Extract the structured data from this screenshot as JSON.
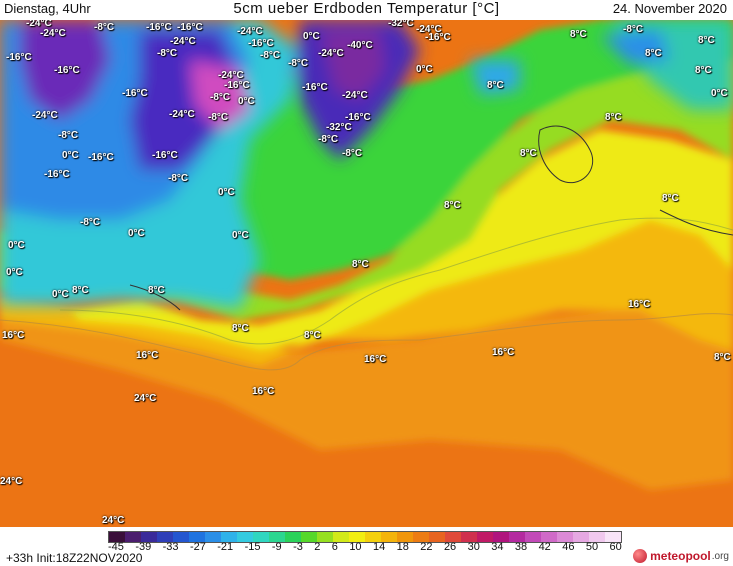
{
  "header": {
    "left": "Dienstag, 4Uhr",
    "title": "5cm ueber Erdboden Temperatur [°C]",
    "date": "24. November 2020"
  },
  "map": {
    "labels": [
      {
        "text": "-24°C"
      },
      {
        "text": "-24°C"
      },
      {
        "text": "-8°C"
      },
      {
        "text": "-16°C"
      },
      {
        "text": "-16°C"
      },
      {
        "text": "-24°C"
      },
      {
        "text": "-24°C"
      },
      {
        "text": "-16°C"
      },
      {
        "text": "-8°C"
      },
      {
        "text": "0°C"
      },
      {
        "text": "-24°C"
      },
      {
        "text": "-40°C"
      },
      {
        "text": "-32°C"
      },
      {
        "text": "-24°C"
      },
      {
        "text": "-16°C"
      },
      {
        "text": "8°C"
      },
      {
        "text": "-8°C"
      },
      {
        "text": "8°C"
      },
      {
        "text": "-16°C"
      },
      {
        "text": "-16°C"
      },
      {
        "text": "-8°C"
      },
      {
        "text": "-24°C"
      },
      {
        "text": "-16°C"
      },
      {
        "text": "-8°C"
      },
      {
        "text": "0°C"
      },
      {
        "text": "8°C"
      },
      {
        "text": "8°C"
      },
      {
        "text": "-16°C"
      },
      {
        "text": "8°C"
      },
      {
        "text": "0°C"
      },
      {
        "text": "-24°C"
      },
      {
        "text": "-8°C"
      },
      {
        "text": "-8°C"
      },
      {
        "text": "0°C"
      },
      {
        "text": "-16°C"
      },
      {
        "text": "-24°C"
      },
      {
        "text": "-8°C"
      },
      {
        "text": "-16°C"
      },
      {
        "text": "-32°C"
      },
      {
        "text": "8°C"
      },
      {
        "text": "-24°C"
      },
      {
        "text": "-8°C"
      },
      {
        "text": "0°C"
      },
      {
        "text": "-16°C"
      },
      {
        "text": "-16°C"
      },
      {
        "text": "-8°C"
      },
      {
        "text": "8°C"
      },
      {
        "text": "-16°C"
      },
      {
        "text": "-8°C"
      },
      {
        "text": "0°C"
      },
      {
        "text": "8°C"
      },
      {
        "text": "-8°C"
      },
      {
        "text": "0°C"
      },
      {
        "text": "0°C"
      },
      {
        "text": "0°C"
      },
      {
        "text": "8°C"
      },
      {
        "text": "0°C"
      },
      {
        "text": "8°C"
      },
      {
        "text": "0°C"
      },
      {
        "text": "8°C"
      },
      {
        "text": "8°C"
      },
      {
        "text": "16°C"
      },
      {
        "text": "16°C"
      },
      {
        "text": "8°C"
      },
      {
        "text": "8°C"
      },
      {
        "text": "16°C"
      },
      {
        "text": "16°C"
      },
      {
        "text": "16°C"
      },
      {
        "text": "8°C"
      },
      {
        "text": "16°C"
      },
      {
        "text": "24°C"
      },
      {
        "text": "24°C"
      },
      {
        "text": "24°C"
      }
    ]
  },
  "legend": {
    "ticks": [
      "-45",
      "-39",
      "-33",
      "-27",
      "-21",
      "-15",
      "-9",
      "-3",
      "2",
      "6",
      "10",
      "14",
      "18",
      "22",
      "26",
      "30",
      "34",
      "38",
      "42",
      "46",
      "50",
      "60"
    ],
    "colors": [
      "#3a0f3a",
      "#4b1d6e",
      "#3a2a9a",
      "#2f3fb8",
      "#2456d0",
      "#1f73e0",
      "#2b8fe8",
      "#2fb2ea",
      "#34cbe0",
      "#30d6c0",
      "#2cd690",
      "#2ad25a",
      "#56d82a",
      "#96e020",
      "#d2ea1a",
      "#f2ee12",
      "#f4d00e",
      "#f4b40c",
      "#f0960c",
      "#ec7c14",
      "#e86420",
      "#e04a3a",
      "#d0304e",
      "#c01a66",
      "#b0147e",
      "#b42aa0",
      "#c24ab8",
      "#d06ac8",
      "#dc8ad6",
      "#e6a8e2",
      "#f0c8ee",
      "#f8e4f8"
    ]
  },
  "footer": {
    "run_info": "+33h Init:18Z22NOV2020",
    "logo_text": "meteopool",
    "logo_domain": ".org"
  }
}
